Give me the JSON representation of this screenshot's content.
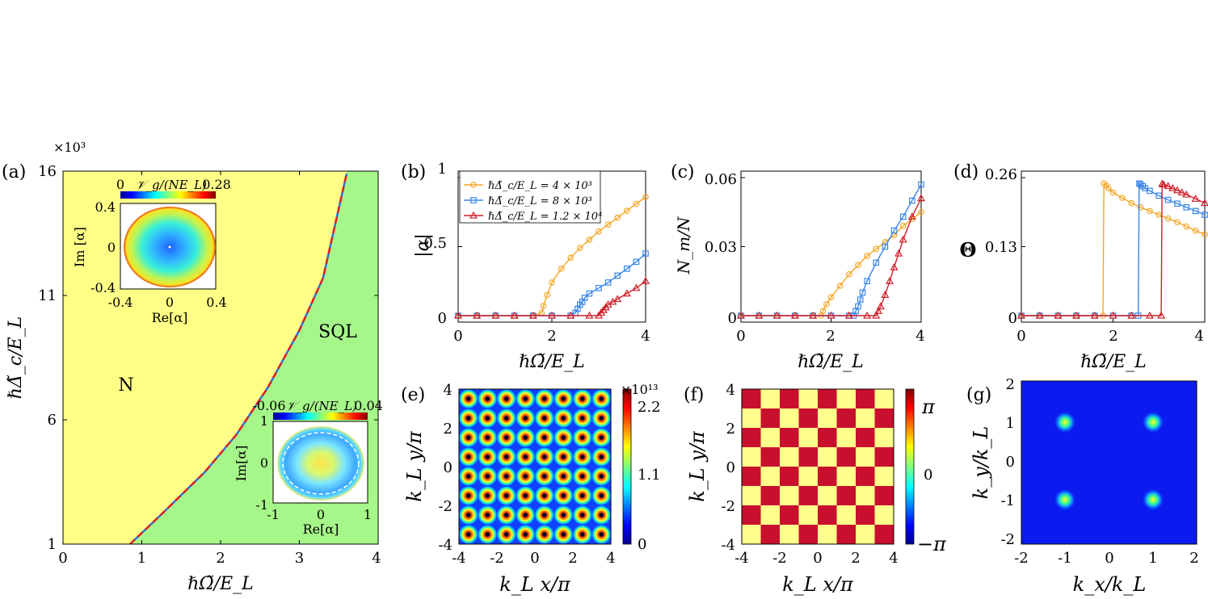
{
  "panels": {
    "a": {
      "label": "(a)",
      "xlabel": "ℏΩ̃/E_L",
      "ylabel": "ℏΔ̃_c/E_L",
      "y_multiplier": "×10³",
      "x_ticks": [
        "0",
        "1",
        "2",
        "3",
        "4"
      ],
      "y_ticks": [
        "1",
        "6",
        "11",
        "16"
      ],
      "region_N": "N",
      "region_SQL": "SQL",
      "colors": {
        "N_region": "#ffff88",
        "SQL_region": "#a6f78a",
        "boundary_solid": "#2f6fe0",
        "boundary_dashed": "#e02020"
      },
      "boundary": {
        "x": [
          0.85,
          1.25,
          1.8,
          2.2,
          2.6,
          3.0,
          3.3,
          3.6
        ],
        "y": [
          1.0,
          2.2,
          3.9,
          5.4,
          7.3,
          9.6,
          11.7,
          15.9
        ]
      },
      "inset_top": {
        "cbar_min": "0",
        "cbar_max": "0.28",
        "cbar_label": "𝒱_g/(NE_L)",
        "xlabel": "Re[α]",
        "ylabel": "Im [α]",
        "x_ticks": [
          "-0.4",
          "0",
          "0.4"
        ],
        "y_ticks": [
          "0.4",
          "0",
          "-0.4"
        ]
      },
      "inset_bottom": {
        "cbar_min": "-0.06",
        "cbar_max": "0.04",
        "cbar_label": "𝒱_g/(NE_L)",
        "xlabel": "Re[α]",
        "ylabel": "Im[α]",
        "x_ticks": [
          "-1",
          "0",
          "1"
        ],
        "y_ticks": [
          "1",
          "0",
          "-1"
        ]
      }
    },
    "b": {
      "label": "(b)",
      "ylabel": "|α|",
      "xlabel": "ℏΩ̃/E_L",
      "x_ticks": [
        "0",
        "2",
        "4"
      ],
      "y_ticks": [
        "0",
        "0.5",
        "1"
      ]
    },
    "c": {
      "label": "(c)",
      "ylabel": "N_m/N",
      "xlabel": "ℏΩ̃/E_L",
      "x_ticks": [
        "0",
        "2",
        "4"
      ],
      "y_ticks": [
        "0",
        "0.03",
        "0.06"
      ]
    },
    "d": {
      "label": "(d)",
      "ylabel": "Θ",
      "xlabel": "ℏΩ̃/E_L",
      "x_ticks": [
        "0",
        "2",
        "4"
      ],
      "y_ticks": [
        "0",
        "0.13",
        "0.26"
      ]
    },
    "e": {
      "label": "(e)",
      "xlabel": "k_L x/π",
      "ylabel": "k_L y/π",
      "x_ticks": [
        "-4",
        "-2",
        "0",
        "2",
        "4"
      ],
      "y_ticks": [
        "4",
        "2",
        "0",
        "-2",
        "-4"
      ],
      "cbar_ticks": [
        "2.2",
        "1.1",
        "0"
      ],
      "cbar_multiplier": "×10¹³"
    },
    "f": {
      "label": "(f)",
      "xlabel": "k_L x/π",
      "ylabel": "k_L y/π",
      "x_ticks": [
        "-4",
        "-2",
        "0",
        "2",
        "4"
      ],
      "y_ticks": [
        "4",
        "2",
        "0",
        "-2",
        "-4"
      ],
      "cbar_ticks": [
        "π",
        "0",
        "−π"
      ],
      "colors": {
        "cell_a": "#c8102e",
        "cell_b": "#ffff8c"
      }
    },
    "g": {
      "label": "(g)",
      "xlabel": "k_x/k_L",
      "ylabel": "k_y/k_L",
      "x_ticks": [
        "-2",
        "-1",
        "0",
        "1",
        "2"
      ],
      "y_ticks": [
        "2",
        "1",
        "0",
        "-1",
        "-2"
      ],
      "colors": {
        "background": "#0b1bf0"
      }
    }
  },
  "legend": [
    {
      "label": "ℏΔ̃_c/E_L = 4 × 10³",
      "color": "#f5a623",
      "marker": "circle"
    },
    {
      "label": "ℏΔ̃_c/E_L = 8 × 10³",
      "color": "#3a86e8",
      "marker": "square"
    },
    {
      "label": "ℏΔ̃_c/E_L = 1.2 × 10⁴",
      "color": "#d0202a",
      "marker": "triangle"
    }
  ],
  "chart_data": [
    {
      "type": "line",
      "panel": "b",
      "title": "",
      "xlabel": "ℏΩ̃/E_L",
      "ylabel": "|α|",
      "xlim": [
        0,
        4
      ],
      "ylim": [
        0,
        1
      ],
      "series": [
        {
          "name": "ℏΔ̃_c/E_L = 4 × 10³",
          "x": [
            0,
            0.4,
            0.8,
            1.2,
            1.6,
            1.78,
            1.82,
            1.9,
            2.0,
            2.2,
            2.4,
            2.6,
            2.8,
            3.0,
            3.2,
            3.4,
            3.6,
            3.8,
            4.0
          ],
          "y": [
            0,
            0,
            0,
            0,
            0,
            0.02,
            0.07,
            0.15,
            0.24,
            0.34,
            0.42,
            0.49,
            0.55,
            0.61,
            0.66,
            0.71,
            0.76,
            0.81,
            0.86
          ]
        },
        {
          "name": "ℏΔ̃_c/E_L = 8 × 10³",
          "x": [
            0,
            0.4,
            0.8,
            1.2,
            1.6,
            2.0,
            2.4,
            2.5,
            2.55,
            2.6,
            2.65,
            2.7,
            2.8,
            3.0,
            3.2,
            3.4,
            3.6,
            3.8,
            4.0
          ],
          "y": [
            0,
            0,
            0,
            0,
            0,
            0,
            0,
            0.02,
            0.05,
            0.08,
            0.1,
            0.13,
            0.16,
            0.2,
            0.24,
            0.29,
            0.34,
            0.39,
            0.45
          ]
        },
        {
          "name": "ℏΔ̃_c/E_L = 1.2 × 10⁴",
          "x": [
            0,
            0.4,
            0.8,
            1.2,
            1.6,
            2.0,
            2.4,
            2.8,
            3.0,
            3.05,
            3.1,
            3.15,
            3.2,
            3.3,
            3.4,
            3.6,
            3.8,
            4.0
          ],
          "y": [
            0,
            0,
            0,
            0,
            0,
            0,
            0,
            0,
            0,
            0.02,
            0.04,
            0.06,
            0.08,
            0.1,
            0.12,
            0.16,
            0.2,
            0.25
          ]
        }
      ]
    },
    {
      "type": "line",
      "panel": "c",
      "title": "",
      "xlabel": "ℏΩ̃/E_L",
      "ylabel": "N_m/N",
      "xlim": [
        0,
        4
      ],
      "ylim": [
        0,
        0.06
      ],
      "series": [
        {
          "name": "ℏΔ̃_c/E_L = 4 × 10³",
          "x": [
            0,
            0.4,
            0.8,
            1.2,
            1.6,
            1.78,
            1.82,
            1.9,
            2.0,
            2.2,
            2.4,
            2.6,
            2.8,
            3.0,
            3.2,
            3.4,
            3.6,
            3.8,
            4.0
          ],
          "y": [
            0,
            0,
            0,
            0,
            0,
            0,
            0.002,
            0.005,
            0.008,
            0.013,
            0.018,
            0.022,
            0.026,
            0.029,
            0.032,
            0.035,
            0.039,
            0.042,
            0.045
          ]
        },
        {
          "name": "ℏΔ̃_c/E_L = 8 × 10³",
          "x": [
            0,
            0.4,
            0.8,
            1.2,
            1.6,
            2.0,
            2.4,
            2.5,
            2.55,
            2.6,
            2.65,
            2.7,
            2.8,
            3.0,
            3.2,
            3.4,
            3.6,
            3.8,
            4.0
          ],
          "y": [
            0,
            0,
            0,
            0,
            0,
            0,
            0,
            0,
            0.002,
            0.004,
            0.007,
            0.01,
            0.015,
            0.023,
            0.03,
            0.037,
            0.043,
            0.05,
            0.057
          ]
        },
        {
          "name": "ℏΔ̃_c/E_L = 1.2 × 10⁴",
          "x": [
            0,
            0.4,
            0.8,
            1.2,
            1.6,
            2.0,
            2.4,
            2.8,
            3.0,
            3.05,
            3.1,
            3.2,
            3.3,
            3.4,
            3.5,
            3.6,
            3.8,
            4.0
          ],
          "y": [
            0,
            0,
            0,
            0,
            0,
            0,
            0,
            0,
            0,
            0.002,
            0.004,
            0.009,
            0.015,
            0.021,
            0.027,
            0.033,
            0.043,
            0.051
          ]
        }
      ]
    },
    {
      "type": "line",
      "panel": "d",
      "title": "",
      "xlabel": "ℏΩ̃/E_L",
      "ylabel": "Θ",
      "xlim": [
        0,
        4
      ],
      "ylim": [
        0,
        0.26
      ],
      "series": [
        {
          "name": "ℏΔ̃_c/E_L = 4 × 10³",
          "x": [
            0,
            0.4,
            0.8,
            1.2,
            1.6,
            1.78,
            1.8,
            1.85,
            1.9,
            2.0,
            2.2,
            2.4,
            2.6,
            2.8,
            3.0,
            3.2,
            3.4,
            3.6,
            3.8,
            4.0
          ],
          "y": [
            0,
            0,
            0,
            0,
            0,
            0,
            0.249,
            0.245,
            0.24,
            0.232,
            0.222,
            0.212,
            0.204,
            0.197,
            0.19,
            0.183,
            0.176,
            0.168,
            0.16,
            0.153
          ]
        },
        {
          "name": "ℏΔ̃_c/E_L = 8 × 10³",
          "x": [
            0,
            0.4,
            0.8,
            1.2,
            1.6,
            2.0,
            2.4,
            2.55,
            2.57,
            2.6,
            2.65,
            2.7,
            2.8,
            3.0,
            3.2,
            3.4,
            3.6,
            3.8,
            4.0
          ],
          "y": [
            0,
            0,
            0,
            0,
            0,
            0,
            0,
            0,
            0.249,
            0.247,
            0.244,
            0.24,
            0.235,
            0.226,
            0.218,
            0.211,
            0.204,
            0.197,
            0.19
          ]
        },
        {
          "name": "ℏΔ̃_c/E_L = 1.2 × 10⁴",
          "x": [
            0,
            0.4,
            0.8,
            1.2,
            1.6,
            2.0,
            2.4,
            2.8,
            3.05,
            3.07,
            3.1,
            3.2,
            3.3,
            3.4,
            3.5,
            3.6,
            3.8,
            4.0
          ],
          "y": [
            0,
            0,
            0,
            0,
            0,
            0,
            0,
            0,
            0,
            0.248,
            0.247,
            0.244,
            0.24,
            0.236,
            0.232,
            0.228,
            0.22,
            0.212
          ]
        }
      ]
    }
  ]
}
